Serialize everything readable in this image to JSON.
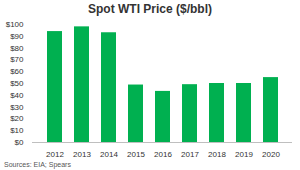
{
  "chart_data": {
    "type": "bar",
    "title": "Spot WTI Price ($/bbl)",
    "caption": "Sources: EIA; Spears",
    "categories": [
      "2012",
      "2013",
      "2014",
      "2015",
      "2016",
      "2017",
      "2018",
      "2019",
      "2020"
    ],
    "values": [
      94,
      98,
      93,
      48.7,
      43.3,
      49,
      50,
      50,
      55
    ],
    "color": "#00b050",
    "ylim": [
      0,
      100
    ],
    "yticks": [
      {
        "value": 0,
        "label": "$0"
      },
      {
        "value": 10,
        "label": "$10"
      },
      {
        "value": 20,
        "label": "$20"
      },
      {
        "value": 30,
        "label": "$30"
      },
      {
        "value": 40,
        "label": "$40"
      },
      {
        "value": 50,
        "label": "$50"
      },
      {
        "value": 60,
        "label": "$60"
      },
      {
        "value": 70,
        "label": "$70"
      },
      {
        "value": 80,
        "label": "$80"
      },
      {
        "value": 90,
        "label": "$90"
      },
      {
        "value": 100,
        "label": "$100"
      }
    ],
    "grid": false
  }
}
